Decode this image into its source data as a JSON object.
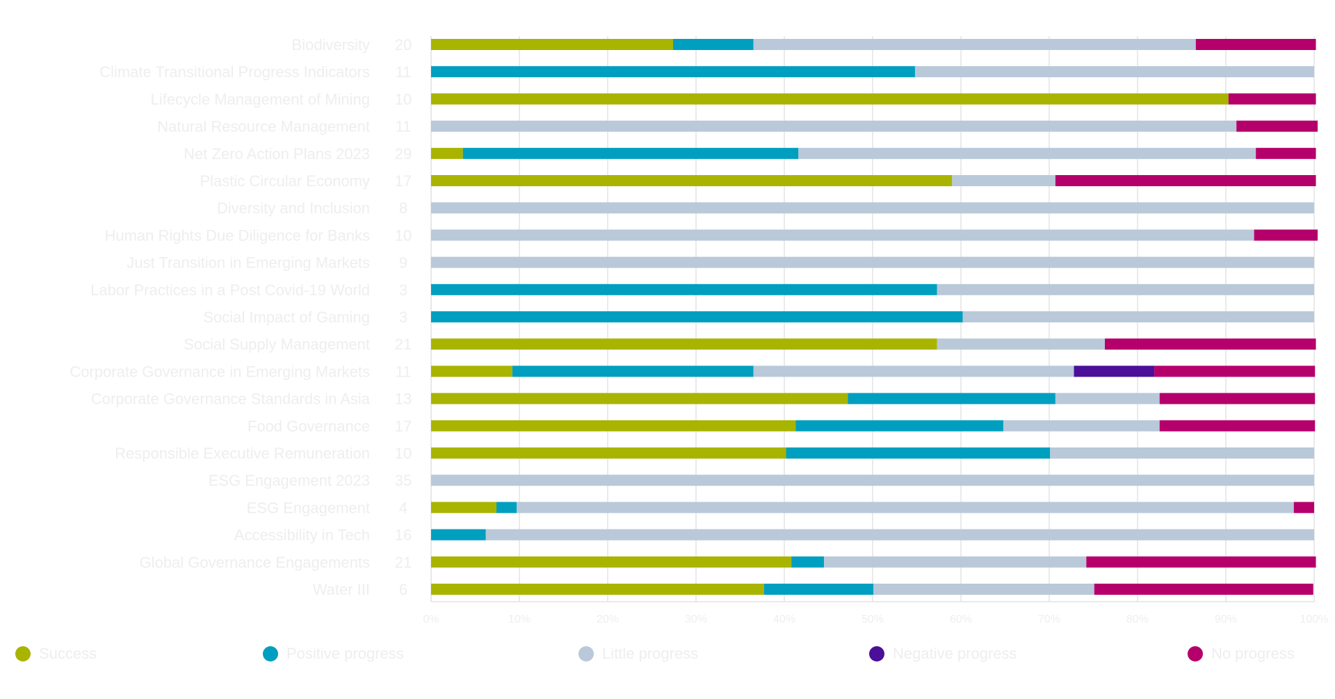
{
  "chart_data": {
    "type": "bar",
    "orientation": "horizontal",
    "stacked": true,
    "grid": true,
    "legend_position": "bottom",
    "xlim": [
      0,
      100
    ],
    "x_tick_labels": [
      "0%",
      "10%",
      "20%",
      "30%",
      "40%",
      "50%",
      "60%",
      "70%",
      "80%",
      "90%",
      "100%"
    ],
    "categories": [
      "Biodiversity",
      "Climate Transitional Progress Indicators",
      "Lifecycle Management of Mining",
      "Natural Resource Management",
      "Net Zero Action Plans 2023",
      "Plastic Circular Economy",
      "Diversity and Inclusion",
      "Human Rights Due Diligence for Banks",
      "Just Transition in Emerging Markets",
      "Labor Practices in a Post Covid-19 World",
      "Social Impact of Gaming",
      "Social Supply Management",
      "Corporate Governance in Emerging Markets",
      "Corporate Governance Standards in Asia",
      "Food Governance",
      "Responsible Executive Remuneration",
      "ESG Engagement 2023",
      "ESG Engagement",
      "Accessibility in Tech",
      "Global Governance Engagements",
      "Water III"
    ],
    "counts": [
      "20",
      "11",
      "10",
      "11",
      "29",
      "17",
      "8",
      "10",
      "9",
      "3",
      "3",
      "21",
      "11",
      "13",
      "17",
      "10",
      "35",
      "4",
      "16",
      "21",
      "6"
    ],
    "series": [
      {
        "name": "Success",
        "color": "#a8b400",
        "values": [
          27.4,
          0,
          90.3,
          0,
          3.6,
          59,
          0,
          0,
          0,
          0,
          0,
          57.3,
          9.2,
          47.2,
          41.3,
          40.2,
          0,
          7.4,
          0,
          40.8,
          37.7
        ]
      },
      {
        "name": "Positive progress",
        "color": "#009fbf",
        "values": [
          9.1,
          54.8,
          0,
          0,
          38,
          0,
          0,
          0,
          0,
          57.3,
          60.2,
          0,
          27.3,
          23.5,
          23.5,
          29.9,
          0,
          2.3,
          6.2,
          3.7,
          12.4
        ]
      },
      {
        "name": "Little progress",
        "color": "#b9c9d9",
        "values": [
          50.1,
          45.2,
          0,
          91.2,
          51.8,
          11.7,
          100,
          93.2,
          100,
          42.7,
          39.8,
          19.0,
          36.3,
          11.8,
          17.7,
          29.9,
          100,
          88.0,
          93.8,
          29.7,
          25.0
        ]
      },
      {
        "name": "Negative progress",
        "color": "#4b0f99",
        "values": [
          0,
          0,
          0,
          0,
          0,
          0,
          0,
          0,
          0,
          0,
          0,
          0,
          9.1,
          0,
          0,
          0,
          0,
          0,
          0,
          0,
          0
        ]
      },
      {
        "name": "No progress",
        "color": "#b5006b",
        "values": [
          13.6,
          0,
          9.9,
          9.2,
          6.8,
          29.5,
          0,
          7.2,
          0,
          0,
          0,
          23.9,
          18.2,
          17.6,
          17.6,
          0,
          0,
          2.3,
          0,
          26.0,
          24.8
        ]
      }
    ],
    "legend": [
      {
        "label": "Success",
        "color": "#a8b400"
      },
      {
        "label": "Positive progress",
        "color": "#009fbf"
      },
      {
        "label": "Little progress",
        "color": "#b9c9d9"
      },
      {
        "label": "Negative progress",
        "color": "#4b0f99"
      },
      {
        "label": "No progress",
        "color": "#b5006b"
      }
    ]
  }
}
